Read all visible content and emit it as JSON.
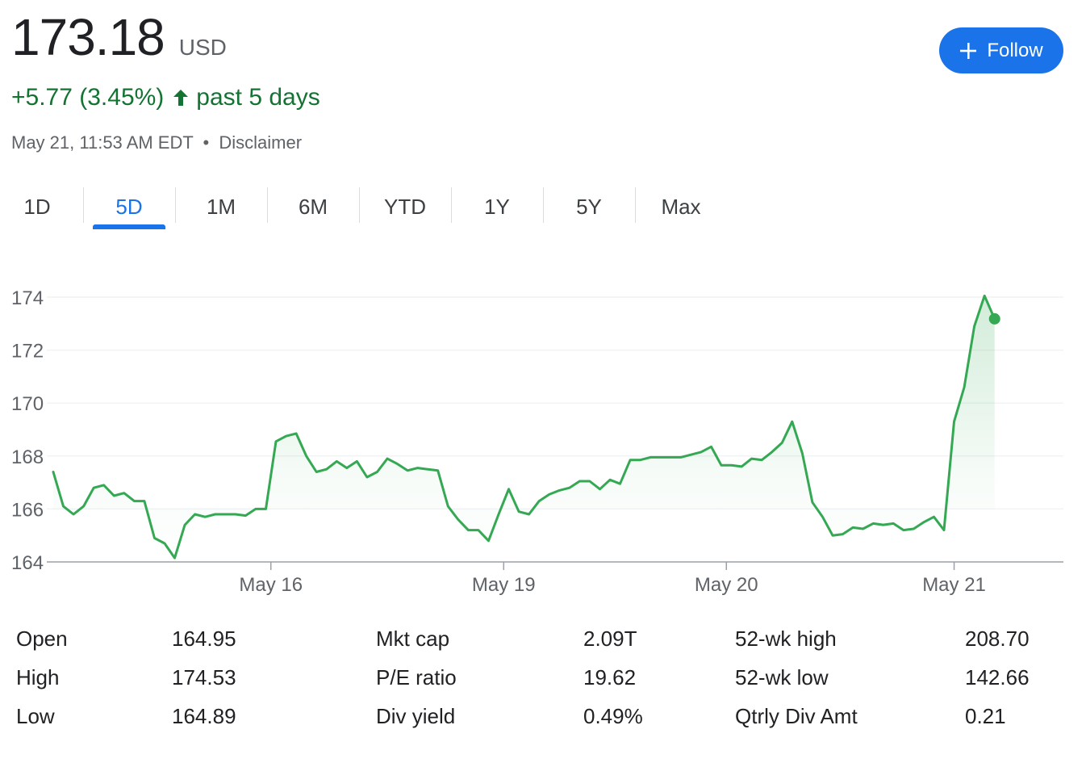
{
  "quote": {
    "price": "173.18",
    "currency": "USD",
    "change": "+5.77 (3.45%)",
    "period": "past 5 days",
    "timestamp": "May 21, 11:53 AM EDT",
    "separator": "•",
    "disclaimer": "Disclaimer",
    "up_color": "#137333",
    "line_color": "#34a853"
  },
  "follow_button": {
    "label": "Follow",
    "icon": "plus-icon",
    "color": "#1a73e8"
  },
  "tabs": [
    {
      "label": "1D",
      "active": false
    },
    {
      "label": "5D",
      "active": true
    },
    {
      "label": "1M",
      "active": false
    },
    {
      "label": "6M",
      "active": false
    },
    {
      "label": "YTD",
      "active": false
    },
    {
      "label": "1Y",
      "active": false
    },
    {
      "label": "5Y",
      "active": false
    },
    {
      "label": "Max",
      "active": false
    }
  ],
  "chart_data": {
    "type": "line",
    "ylim": [
      164,
      174.5
    ],
    "yticks": [
      164,
      166,
      168,
      170,
      172,
      174
    ],
    "x_range": [
      0,
      99
    ],
    "xticks": [
      {
        "label": "May 16",
        "x": 21.5
      },
      {
        "label": "May 19",
        "x": 44.5
      },
      {
        "label": "May 20",
        "x": 66.5
      },
      {
        "label": "May 21",
        "x": 89
      }
    ],
    "grid": true,
    "series": [
      {
        "values": [
          167.4,
          166.1,
          165.8,
          166.1,
          166.8,
          166.9,
          166.5,
          166.6,
          166.3,
          166.3,
          164.9,
          164.7,
          164.15,
          165.4,
          165.8,
          165.7,
          165.8,
          165.8,
          165.8,
          165.75,
          166.0,
          166.0,
          168.55,
          168.75,
          168.85,
          168.0,
          167.4,
          167.5,
          167.8,
          167.55,
          167.8,
          167.2,
          167.4,
          167.9,
          167.7,
          167.45,
          167.55,
          167.5,
          167.45,
          166.1,
          165.6,
          165.2,
          165.2,
          164.8,
          165.8,
          166.75,
          165.9,
          165.8,
          166.3,
          166.55,
          166.7,
          166.8,
          167.05,
          167.05,
          166.75,
          167.1,
          166.95,
          167.85,
          167.85,
          167.95,
          167.95,
          167.95,
          167.95,
          168.05,
          168.15,
          168.35,
          167.65,
          167.65,
          167.6,
          167.9,
          167.85,
          168.15,
          168.5,
          169.3,
          168.1,
          166.25,
          165.7,
          165.0,
          165.05,
          165.3,
          165.25,
          165.45,
          165.4,
          165.45,
          165.2,
          165.25,
          165.5,
          165.7,
          165.2,
          169.3,
          170.6,
          172.9,
          174.05,
          173.18
        ],
        "end_marker": true
      }
    ]
  },
  "stats": [
    {
      "label": "Open",
      "value": "164.95"
    },
    {
      "label": "High",
      "value": "174.53"
    },
    {
      "label": "Low",
      "value": "164.89"
    },
    {
      "label": "Mkt cap",
      "value": "2.09T"
    },
    {
      "label": "P/E ratio",
      "value": "19.62"
    },
    {
      "label": "Div yield",
      "value": "0.49%"
    },
    {
      "label": "52-wk high",
      "value": "208.70"
    },
    {
      "label": "52-wk low",
      "value": "142.66"
    },
    {
      "label": "Qtrly Div Amt",
      "value": "0.21"
    }
  ]
}
